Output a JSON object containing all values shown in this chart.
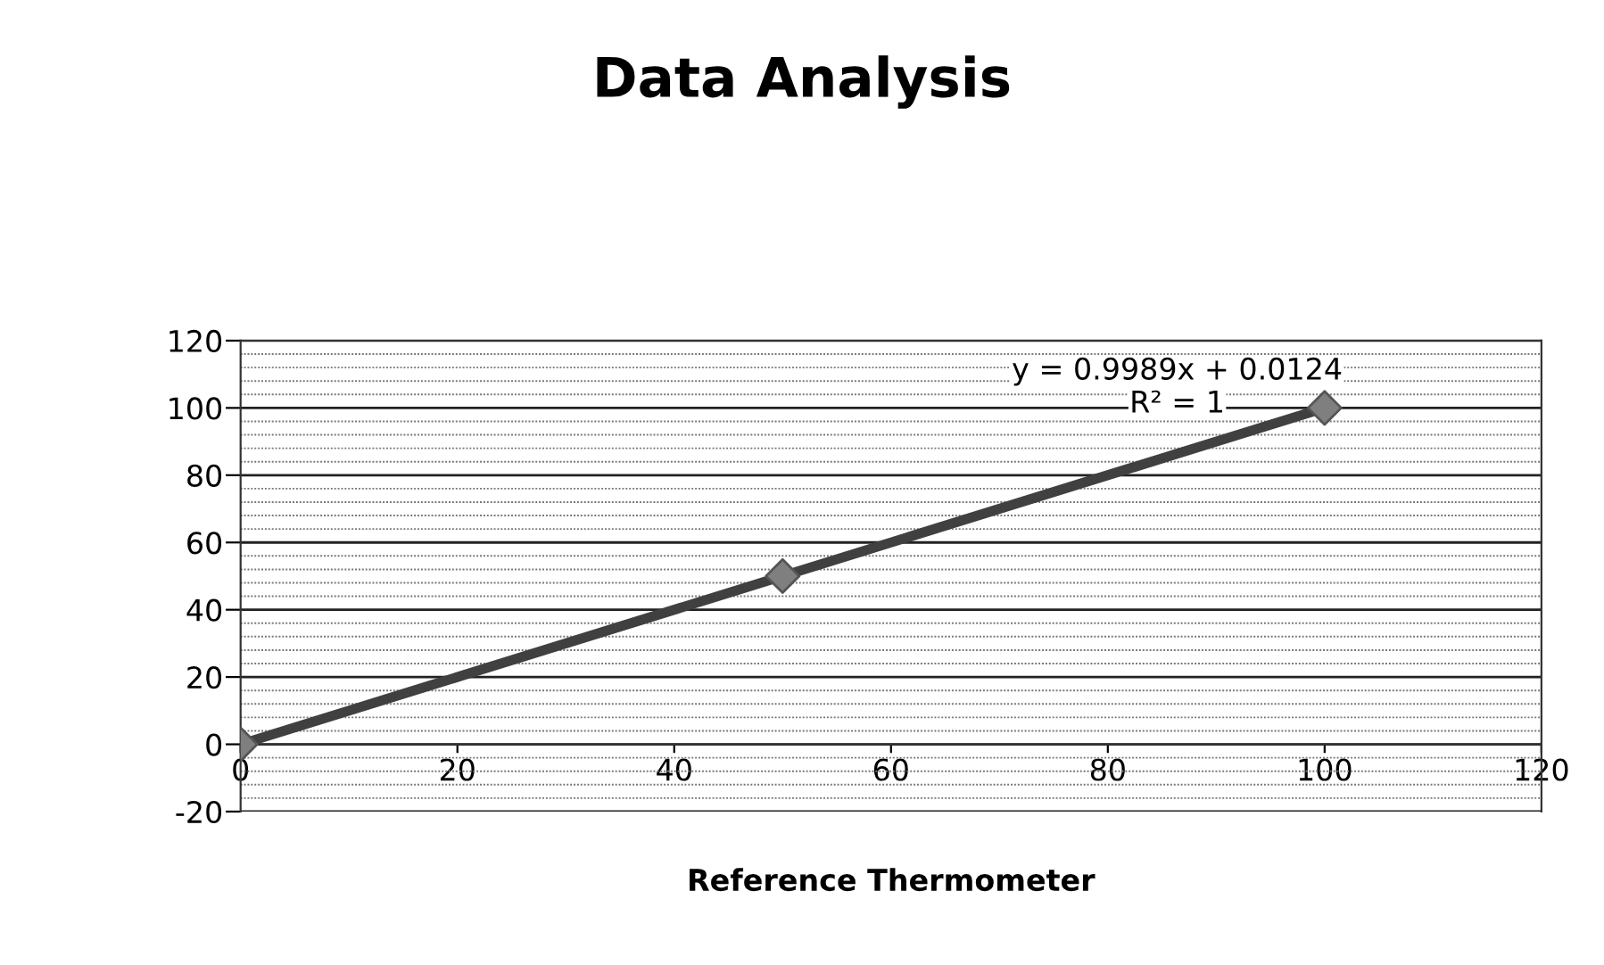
{
  "chart_data": {
    "type": "scatter",
    "title": "Data Analysis",
    "xlabel": "Reference Thermometer",
    "annotations": [
      "y = 0.9989x + 0.0124",
      "R² = 1"
    ],
    "series": [
      {
        "color": "#7f7f7f",
        "x": [
          0,
          50,
          100
        ],
        "values": [
          0,
          50,
          100
        ],
        "marker": "diamond"
      },
      {
        "type": "line",
        "color": "#404040",
        "x": [
          0,
          100
        ],
        "values": [
          0,
          100
        ],
        "marker": "none",
        "line_style": "solid"
      }
    ],
    "xlim": [
      0,
      120
    ],
    "xticks": [
      0,
      20,
      40,
      60,
      80,
      100,
      120
    ],
    "ylim": [
      -20,
      120
    ],
    "yticks": [
      -20,
      {
        "value": -16,
        "label": null
      },
      {
        "value": -12,
        "label": null
      },
      {
        "value": -8,
        "label": null
      },
      {
        "value": -4,
        "label": null
      },
      0,
      {
        "value": 4,
        "label": null
      },
      {
        "value": 8,
        "label": null
      },
      {
        "value": 12,
        "label": null
      },
      {
        "value": 16,
        "label": null
      },
      20,
      {
        "value": 24,
        "label": null
      },
      {
        "value": 28,
        "label": null
      },
      {
        "value": 32,
        "label": null
      },
      {
        "value": 36,
        "label": null
      },
      40,
      {
        "value": 44,
        "label": null
      },
      {
        "value": 48,
        "label": null
      },
      {
        "value": 52,
        "label": null
      },
      {
        "value": 56,
        "label": null
      },
      60,
      {
        "value": 64,
        "label": null
      },
      {
        "value": 68,
        "label": null
      },
      {
        "value": 72,
        "label": null
      },
      {
        "value": 76,
        "label": null
      },
      80,
      {
        "value": 84,
        "label": null
      },
      {
        "value": 88,
        "label": null
      },
      {
        "value": 92,
        "label": null
      },
      {
        "value": 96,
        "label": null
      },
      100,
      {
        "value": 104,
        "label": null
      },
      {
        "value": 108,
        "label": null
      },
      {
        "value": 112,
        "label": null
      },
      {
        "value": 116,
        "label": null
      },
      120
    ],
    "grid": "y",
    "legend": false
  }
}
